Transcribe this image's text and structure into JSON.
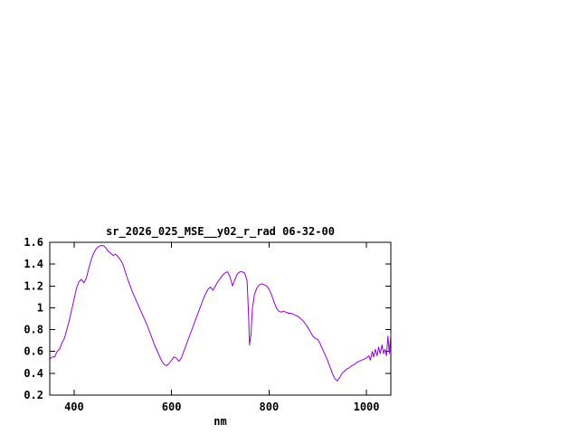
{
  "page": {
    "background": "#ffffff"
  },
  "chart_data": {
    "type": "line",
    "title": "sr_2026_025_MSE__y02_r_rad 06-32-00",
    "xlabel": "nm",
    "ylabel": "",
    "xlim": [
      350,
      1050
    ],
    "ylim": [
      0.2,
      1.6
    ],
    "xticks": [
      400,
      600,
      800,
      1000
    ],
    "yticks": [
      0.2,
      0.4,
      0.6,
      0.8,
      1,
      1.2,
      1.4,
      1.6
    ],
    "grid": false,
    "legend": "none",
    "line_color": "#9400d3",
    "border_color": "#000000",
    "points": [
      [
        350,
        0.53
      ],
      [
        355,
        0.55
      ],
      [
        360,
        0.55
      ],
      [
        365,
        0.6
      ],
      [
        370,
        0.62
      ],
      [
        375,
        0.68
      ],
      [
        380,
        0.72
      ],
      [
        385,
        0.8
      ],
      [
        390,
        0.88
      ],
      [
        395,
        0.98
      ],
      [
        400,
        1.08
      ],
      [
        405,
        1.18
      ],
      [
        410,
        1.24
      ],
      [
        415,
        1.26
      ],
      [
        420,
        1.23
      ],
      [
        425,
        1.27
      ],
      [
        430,
        1.36
      ],
      [
        435,
        1.44
      ],
      [
        440,
        1.5
      ],
      [
        445,
        1.54
      ],
      [
        450,
        1.56
      ],
      [
        455,
        1.57
      ],
      [
        460,
        1.57
      ],
      [
        465,
        1.55
      ],
      [
        470,
        1.52
      ],
      [
        475,
        1.5
      ],
      [
        480,
        1.48
      ],
      [
        485,
        1.49
      ],
      [
        490,
        1.47
      ],
      [
        495,
        1.44
      ],
      [
        500,
        1.4
      ],
      [
        505,
        1.33
      ],
      [
        510,
        1.26
      ],
      [
        515,
        1.2
      ],
      [
        520,
        1.14
      ],
      [
        525,
        1.09
      ],
      [
        530,
        1.04
      ],
      [
        535,
        0.99
      ],
      [
        540,
        0.94
      ],
      [
        545,
        0.89
      ],
      [
        550,
        0.84
      ],
      [
        555,
        0.78
      ],
      [
        560,
        0.72
      ],
      [
        565,
        0.66
      ],
      [
        570,
        0.61
      ],
      [
        575,
        0.56
      ],
      [
        580,
        0.51
      ],
      [
        585,
        0.48
      ],
      [
        590,
        0.47
      ],
      [
        595,
        0.49
      ],
      [
        600,
        0.52
      ],
      [
        605,
        0.55
      ],
      [
        610,
        0.54
      ],
      [
        615,
        0.51
      ],
      [
        620,
        0.54
      ],
      [
        625,
        0.6
      ],
      [
        630,
        0.66
      ],
      [
        635,
        0.72
      ],
      [
        640,
        0.78
      ],
      [
        645,
        0.84
      ],
      [
        650,
        0.9
      ],
      [
        655,
        0.96
      ],
      [
        660,
        1.02
      ],
      [
        665,
        1.08
      ],
      [
        670,
        1.13
      ],
      [
        675,
        1.17
      ],
      [
        680,
        1.19
      ],
      [
        685,
        1.16
      ],
      [
        690,
        1.2
      ],
      [
        695,
        1.24
      ],
      [
        700,
        1.27
      ],
      [
        705,
        1.3
      ],
      [
        710,
        1.32
      ],
      [
        715,
        1.33
      ],
      [
        720,
        1.28
      ],
      [
        725,
        1.2
      ],
      [
        730,
        1.26
      ],
      [
        735,
        1.31
      ],
      [
        740,
        1.33
      ],
      [
        745,
        1.33
      ],
      [
        750,
        1.32
      ],
      [
        755,
        1.25
      ],
      [
        758,
        0.95
      ],
      [
        760,
        0.66
      ],
      [
        763,
        0.75
      ],
      [
        766,
        1.0
      ],
      [
        770,
        1.12
      ],
      [
        775,
        1.18
      ],
      [
        780,
        1.21
      ],
      [
        785,
        1.22
      ],
      [
        790,
        1.21
      ],
      [
        795,
        1.2
      ],
      [
        800,
        1.17
      ],
      [
        805,
        1.12
      ],
      [
        810,
        1.06
      ],
      [
        815,
        1.0
      ],
      [
        820,
        0.97
      ],
      [
        825,
        0.96
      ],
      [
        830,
        0.97
      ],
      [
        835,
        0.96
      ],
      [
        840,
        0.95
      ],
      [
        845,
        0.95
      ],
      [
        850,
        0.94
      ],
      [
        855,
        0.93
      ],
      [
        860,
        0.92
      ],
      [
        865,
        0.9
      ],
      [
        870,
        0.88
      ],
      [
        875,
        0.85
      ],
      [
        880,
        0.82
      ],
      [
        885,
        0.78
      ],
      [
        890,
        0.74
      ],
      [
        895,
        0.72
      ],
      [
        900,
        0.71
      ],
      [
        905,
        0.67
      ],
      [
        910,
        0.62
      ],
      [
        915,
        0.57
      ],
      [
        920,
        0.52
      ],
      [
        925,
        0.46
      ],
      [
        930,
        0.4
      ],
      [
        935,
        0.35
      ],
      [
        940,
        0.33
      ],
      [
        945,
        0.36
      ],
      [
        950,
        0.4
      ],
      [
        955,
        0.42
      ],
      [
        960,
        0.44
      ],
      [
        965,
        0.45
      ],
      [
        970,
        0.47
      ],
      [
        975,
        0.48
      ],
      [
        980,
        0.5
      ],
      [
        985,
        0.51
      ],
      [
        990,
        0.52
      ],
      [
        995,
        0.53
      ],
      [
        1000,
        0.54
      ],
      [
        1005,
        0.56
      ],
      [
        1008,
        0.52
      ],
      [
        1012,
        0.6
      ],
      [
        1015,
        0.55
      ],
      [
        1018,
        0.62
      ],
      [
        1022,
        0.56
      ],
      [
        1025,
        0.64
      ],
      [
        1028,
        0.58
      ],
      [
        1032,
        0.66
      ],
      [
        1035,
        0.58
      ],
      [
        1038,
        0.62
      ],
      [
        1041,
        0.56
      ],
      [
        1044,
        0.74
      ],
      [
        1047,
        0.58
      ],
      [
        1050,
        0.76
      ]
    ]
  }
}
